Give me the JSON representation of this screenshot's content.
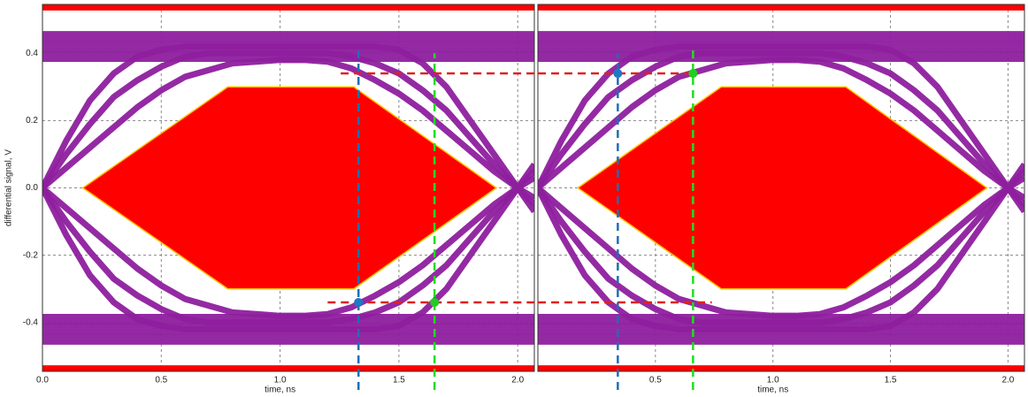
{
  "chart_data": [
    {
      "type": "eye",
      "ylabel": "differential signal, V",
      "xlabel": "time, ns",
      "xlim": [
        0,
        2.07
      ],
      "ylim": [
        -0.545,
        0.545
      ],
      "xticks": [
        {
          "value": 0,
          "label": "0.0"
        },
        0.5,
        {
          "value": 1,
          "label": "1.0"
        },
        1.5,
        {
          "value": 2,
          "label": "2.0"
        }
      ],
      "yticks": [
        0.4,
        0.2,
        {
          "value": 0,
          "label": "0.0"
        },
        -0.2,
        -0.4
      ],
      "ytick_labels": true,
      "grid": true,
      "trace_color": "#8e1f9e",
      "x": [
        0,
        0.1,
        0.2,
        0.3,
        0.4,
        0.5,
        0.6,
        0.7,
        0.8,
        0.9,
        1.0,
        1.1,
        1.2,
        1.3,
        1.4,
        1.5,
        1.6,
        1.7,
        1.8,
        1.9,
        2.0,
        2.07
      ],
      "series": [
        {
          "x": [
            0,
            2.07
          ],
          "values": [
            0.39,
            0.39
          ]
        },
        {
          "x": [
            0,
            2.07
          ],
          "values": [
            0.42,
            0.42
          ]
        },
        {
          "x": [
            0,
            2.07
          ],
          "values": [
            0.45,
            0.45
          ]
        },
        {
          "x": [
            0,
            2.07
          ],
          "values": [
            -0.39,
            -0.39
          ]
        },
        {
          "x": [
            0,
            2.07
          ],
          "values": [
            -0.42,
            -0.42
          ]
        },
        {
          "x": [
            0,
            2.07
          ],
          "values": [
            -0.45,
            -0.45
          ]
        },
        {
          "values": [
            0,
            0.06,
            0.12,
            0.18,
            0.24,
            0.29,
            0.33,
            0.35,
            0.37,
            0.375,
            0.38,
            0.38,
            0.375,
            0.355,
            0.32,
            0.28,
            0.23,
            0.17,
            0.11,
            0.05,
            0,
            -0.03
          ]
        },
        {
          "values": [
            0,
            0.1,
            0.19,
            0.27,
            0.32,
            0.36,
            0.39,
            0.4,
            0.4,
            0.4,
            0.4,
            0.4,
            0.4,
            0.39,
            0.37,
            0.34,
            0.29,
            0.23,
            0.15,
            0.07,
            0,
            -0.05
          ]
        },
        {
          "values": [
            0,
            0.14,
            0.26,
            0.34,
            0.39,
            0.41,
            0.42,
            0.42,
            0.42,
            0.42,
            0.42,
            0.42,
            0.42,
            0.42,
            0.42,
            0.41,
            0.37,
            0.3,
            0.2,
            0.1,
            0,
            -0.07
          ]
        },
        {
          "values": [
            0,
            -0.06,
            -0.12,
            -0.18,
            -0.24,
            -0.29,
            -0.33,
            -0.35,
            -0.37,
            -0.375,
            -0.38,
            -0.38,
            -0.375,
            -0.355,
            -0.32,
            -0.28,
            -0.23,
            -0.17,
            -0.11,
            -0.05,
            0,
            0.03
          ]
        },
        {
          "values": [
            0,
            -0.1,
            -0.19,
            -0.27,
            -0.32,
            -0.36,
            -0.39,
            -0.4,
            -0.4,
            -0.4,
            -0.4,
            -0.4,
            -0.4,
            -0.39,
            -0.37,
            -0.34,
            -0.29,
            -0.23,
            -0.15,
            -0.07,
            0,
            0.05
          ]
        },
        {
          "values": [
            0,
            -0.14,
            -0.26,
            -0.34,
            -0.39,
            -0.41,
            -0.42,
            -0.42,
            -0.42,
            -0.42,
            -0.42,
            -0.42,
            -0.42,
            -0.42,
            -0.42,
            -0.41,
            -0.37,
            -0.3,
            -0.2,
            -0.1,
            0,
            0.07
          ]
        }
      ],
      "mask": {
        "x": [
          0.17,
          0.78,
          1.31,
          1.91,
          1.31,
          0.78
        ],
        "y": [
          0,
          0.3,
          0.3,
          0,
          -0.3,
          -0.3
        ],
        "top": 0.527,
        "bottom": -0.527,
        "color": "#ff0000",
        "edge": "#ffc000"
      },
      "hlines": [
        {
          "y": 0.34,
          "x": [
            1.255,
            2.07
          ],
          "color": "#e02020"
        },
        {
          "y": -0.34,
          "x": [
            1.2,
            2.07
          ],
          "color": "#e02020"
        }
      ],
      "vlines": [
        {
          "x": 1.33,
          "y": [
            -0.6,
            0.41
          ],
          "color": "#1f6fb4"
        },
        {
          "x": 1.65,
          "y": [
            -0.6,
            0.4
          ],
          "color": "#22dd22"
        }
      ],
      "points": [
        {
          "x": 1.33,
          "y": -0.34,
          "color": "#1f77c8"
        },
        {
          "x": 1.65,
          "y": -0.34,
          "color": "#22cc22"
        }
      ]
    },
    {
      "type": "eye",
      "xlabel": "time, ns",
      "xlim": [
        0,
        2.07
      ],
      "ylim": [
        -0.545,
        0.545
      ],
      "xticks": [
        0.5,
        {
          "value": 1,
          "label": "1.0"
        },
        1.5,
        {
          "value": 2,
          "label": "2.0"
        }
      ],
      "yticks": [
        0.4,
        0.2,
        0,
        -0.2,
        -0.4
      ],
      "ytick_labels": false,
      "grid": true,
      "trace_color": "#8e1f9e",
      "x": [
        0,
        0.1,
        0.2,
        0.3,
        0.4,
        0.5,
        0.6,
        0.7,
        0.8,
        0.9,
        1.0,
        1.1,
        1.2,
        1.3,
        1.4,
        1.5,
        1.6,
        1.7,
        1.8,
        1.9,
        2.0,
        2.07
      ],
      "series": [
        {
          "x": [
            0,
            2.07
          ],
          "values": [
            0.39,
            0.39
          ]
        },
        {
          "x": [
            0,
            2.07
          ],
          "values": [
            0.42,
            0.42
          ]
        },
        {
          "x": [
            0,
            2.07
          ],
          "values": [
            0.45,
            0.45
          ]
        },
        {
          "x": [
            0,
            2.07
          ],
          "values": [
            -0.39,
            -0.39
          ]
        },
        {
          "x": [
            0,
            2.07
          ],
          "values": [
            -0.42,
            -0.42
          ]
        },
        {
          "x": [
            0,
            2.07
          ],
          "values": [
            -0.45,
            -0.45
          ]
        },
        {
          "values": [
            0,
            0.06,
            0.12,
            0.18,
            0.24,
            0.29,
            0.33,
            0.35,
            0.37,
            0.375,
            0.38,
            0.38,
            0.375,
            0.355,
            0.32,
            0.28,
            0.23,
            0.17,
            0.11,
            0.05,
            0,
            -0.03
          ]
        },
        {
          "values": [
            0,
            0.1,
            0.19,
            0.27,
            0.32,
            0.36,
            0.39,
            0.4,
            0.4,
            0.4,
            0.4,
            0.4,
            0.4,
            0.39,
            0.37,
            0.34,
            0.29,
            0.23,
            0.15,
            0.07,
            0,
            -0.05
          ]
        },
        {
          "values": [
            0,
            0.14,
            0.26,
            0.34,
            0.39,
            0.41,
            0.42,
            0.42,
            0.42,
            0.42,
            0.42,
            0.42,
            0.42,
            0.42,
            0.42,
            0.41,
            0.37,
            0.3,
            0.2,
            0.1,
            0,
            -0.07
          ]
        },
        {
          "values": [
            0,
            -0.06,
            -0.12,
            -0.18,
            -0.24,
            -0.29,
            -0.33,
            -0.35,
            -0.37,
            -0.375,
            -0.38,
            -0.38,
            -0.375,
            -0.355,
            -0.32,
            -0.28,
            -0.23,
            -0.17,
            -0.11,
            -0.05,
            0,
            0.03
          ]
        },
        {
          "values": [
            0,
            -0.1,
            -0.19,
            -0.27,
            -0.32,
            -0.36,
            -0.39,
            -0.4,
            -0.4,
            -0.4,
            -0.4,
            -0.4,
            -0.4,
            -0.39,
            -0.37,
            -0.34,
            -0.29,
            -0.23,
            -0.15,
            -0.07,
            0,
            0.05
          ]
        },
        {
          "values": [
            0,
            -0.14,
            -0.26,
            -0.34,
            -0.39,
            -0.41,
            -0.42,
            -0.42,
            -0.42,
            -0.42,
            -0.42,
            -0.42,
            -0.42,
            -0.42,
            -0.42,
            -0.41,
            -0.37,
            -0.3,
            -0.2,
            -0.1,
            0,
            0.07
          ]
        }
      ],
      "mask": {
        "x": [
          0.17,
          0.78,
          1.31,
          1.91,
          1.31,
          0.78
        ],
        "y": [
          0,
          0.3,
          0.3,
          0,
          -0.3,
          -0.3
        ],
        "top": 0.527,
        "bottom": -0.527,
        "color": "#ff0000",
        "edge": "#ffc000"
      },
      "hlines": [
        {
          "y": 0.34,
          "x": [
            0,
            0.66
          ],
          "color": "#e02020"
        },
        {
          "y": -0.34,
          "x": [
            0,
            0.74
          ],
          "color": "#e02020"
        }
      ],
      "vlines": [
        {
          "x": 0.34,
          "y": [
            -0.6,
            0.4
          ],
          "color": "#1f6fb4"
        },
        {
          "x": 0.66,
          "y": [
            -0.6,
            0.42
          ],
          "color": "#22dd22"
        }
      ],
      "points": [
        {
          "x": 0.34,
          "y": 0.34,
          "color": "#1f77c8"
        },
        {
          "x": 0.66,
          "y": 0.34,
          "color": "#22cc22"
        }
      ]
    }
  ]
}
